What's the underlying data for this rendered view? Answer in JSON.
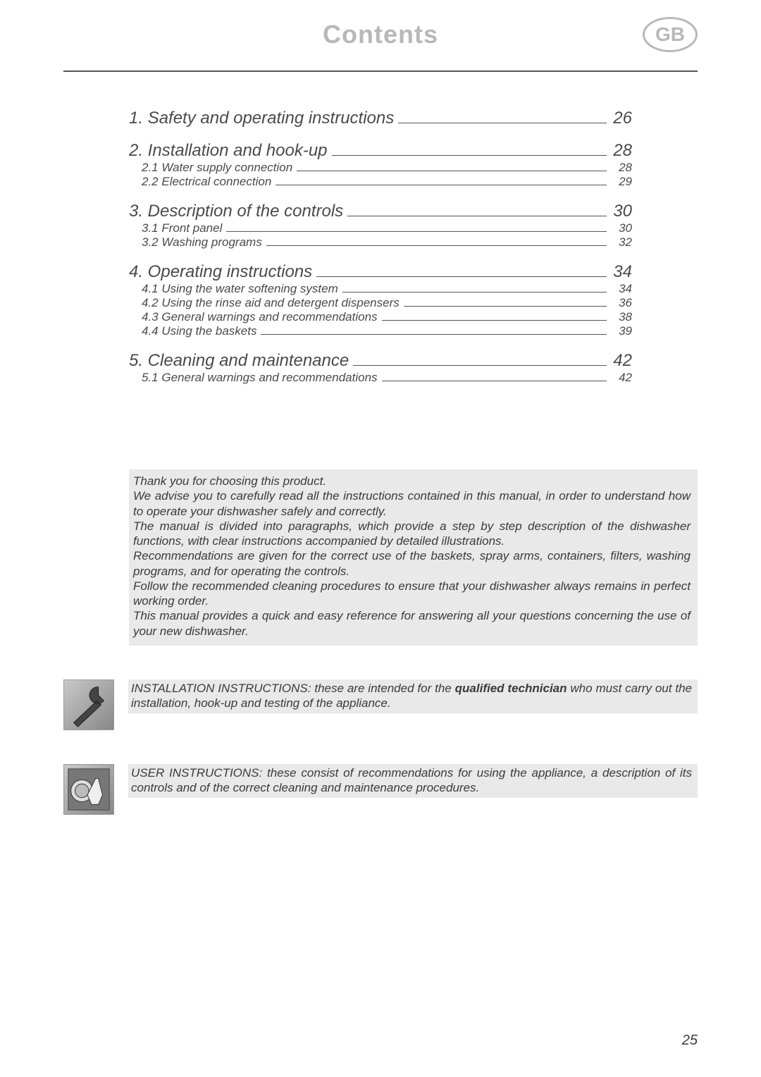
{
  "header": {
    "title": "Contents",
    "badge": "GB"
  },
  "toc": [
    {
      "num": "1.",
      "title": "Safety and operating instructions",
      "page": "26",
      "subs": []
    },
    {
      "num": "2.",
      "title": "Installation and hook-up",
      "page": "28",
      "subs": [
        {
          "num": "2.1",
          "title": "Water supply connection",
          "page": "28"
        },
        {
          "num": "2.2",
          "title": "Electrical connection",
          "page": "29"
        }
      ]
    },
    {
      "num": "3.",
      "title": "Description of the controls",
      "page": "30",
      "subs": [
        {
          "num": "3.1",
          "title": "Front panel",
          "page": "30"
        },
        {
          "num": "3.2",
          "title": "Washing programs",
          "page": "32"
        }
      ]
    },
    {
      "num": "4.",
      "title": "Operating instructions",
      "page": "34",
      "subs": [
        {
          "num": "4.1",
          "title": "Using the water softening system",
          "page": "34"
        },
        {
          "num": "4.2",
          "title": "Using the rinse aid and detergent dispensers",
          "page": "36"
        },
        {
          "num": "4.3",
          "title": "General warnings and recommendations",
          "page": "38"
        },
        {
          "num": "4.4",
          "title": "Using the baskets",
          "page": "39"
        }
      ]
    },
    {
      "num": "5.",
      "title": "Cleaning and maintenance",
      "page": "42",
      "subs": [
        {
          "num": "5.1",
          "title": "General warnings and recommendations",
          "page": "42"
        }
      ]
    }
  ],
  "intro": {
    "l1": "Thank you for choosing this product.",
    "l2": "We advise you to carefully read all the instructions contained in this manual, in order to understand how to operate your dishwasher safely and correctly.",
    "l3": "The manual is divided into paragraphs, which provide a step by step description of the dishwasher functions, with clear instructions accompanied by detailed illustrations.",
    "l4": "Recommendations are given for the correct use of the baskets, spray arms, containers, filters, washing programs, and for operating the controls.",
    "l5": "Follow the recommended cleaning procedures to ensure that your dishwasher always remains in perfect working order.",
    "l6": "This manual provides a quick and easy reference for answering all your questions concerning the use of your new dishwasher."
  },
  "install": {
    "t1": "INSTALLATION INSTRUCTIONS: these are intended for the ",
    "bold": "qualified technician",
    "t2": " who must carry out the installation, hook-up and testing of the appliance."
  },
  "user": {
    "text": "USER INSTRUCTIONS: these consist of recommendations for using the appliance, a description of its controls and of the correct cleaning and maintenance procedures."
  },
  "pagenum": "25",
  "styles": {
    "title_color": "#b8b8b8",
    "text_color": "#4a4a4a",
    "bg_gray": "#e9e9e9"
  }
}
